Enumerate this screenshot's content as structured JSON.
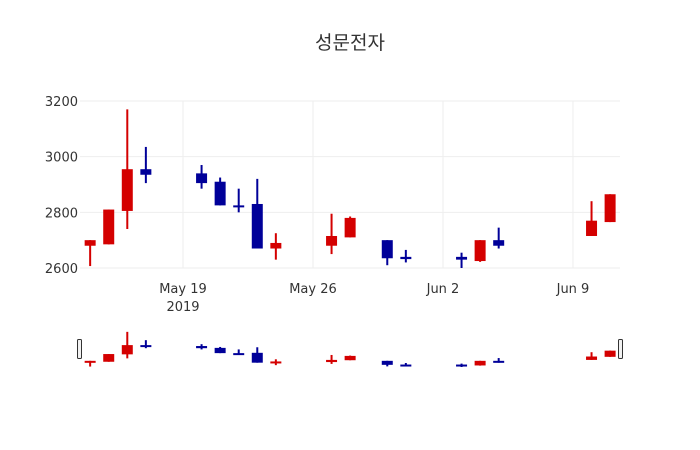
{
  "title": "성문전자",
  "colors": {
    "increasing": "#d40000",
    "decreasing": "#000099",
    "grid": "#eeeeee",
    "text": "#333333"
  },
  "chart_data": {
    "type": "candlestick",
    "title": "성문전자",
    "xlabel": "",
    "ylabel": "",
    "ylim": [
      2600,
      3200
    ],
    "yticks": [
      2600,
      2800,
      3000,
      3200
    ],
    "xticks": [
      {
        "date": "2019-05-19",
        "label": "May 19",
        "sublabel": "2019"
      },
      {
        "date": "2019-05-26",
        "label": "May 26",
        "sublabel": ""
      },
      {
        "date": "2019-06-02",
        "label": "Jun 2",
        "sublabel": ""
      },
      {
        "date": "2019-06-09",
        "label": "Jun 9",
        "sublabel": ""
      }
    ],
    "xrange": [
      "2019-05-13",
      "2019-06-11"
    ],
    "rangeslider": true,
    "grid": true,
    "candles": [
      {
        "date": "2019-05-14",
        "open": 2680,
        "high": 2700,
        "low": 2607,
        "close": 2700
      },
      {
        "date": "2019-05-15",
        "open": 2685,
        "high": 2810,
        "low": 2685,
        "close": 2810
      },
      {
        "date": "2019-05-16",
        "open": 2805,
        "high": 3170,
        "low": 2740,
        "close": 2955
      },
      {
        "date": "2019-05-17",
        "open": 2955,
        "high": 3035,
        "low": 2905,
        "close": 2935
      },
      {
        "date": "2019-05-20",
        "open": 2940,
        "high": 2970,
        "low": 2885,
        "close": 2905
      },
      {
        "date": "2019-05-21",
        "open": 2910,
        "high": 2925,
        "low": 2825,
        "close": 2825
      },
      {
        "date": "2019-05-22",
        "open": 2825,
        "high": 2885,
        "low": 2800,
        "close": 2820
      },
      {
        "date": "2019-05-23",
        "open": 2830,
        "high": 2920,
        "low": 2670,
        "close": 2670
      },
      {
        "date": "2019-05-24",
        "open": 2670,
        "high": 2725,
        "low": 2630,
        "close": 2690
      },
      {
        "date": "2019-05-27",
        "open": 2680,
        "high": 2795,
        "low": 2650,
        "close": 2715
      },
      {
        "date": "2019-05-28",
        "open": 2710,
        "high": 2785,
        "low": 2710,
        "close": 2780
      },
      {
        "date": "2019-05-30",
        "open": 2700,
        "high": 2700,
        "low": 2610,
        "close": 2635
      },
      {
        "date": "2019-05-31",
        "open": 2640,
        "high": 2665,
        "low": 2620,
        "close": 2632
      },
      {
        "date": "2019-06-03",
        "open": 2640,
        "high": 2655,
        "low": 2600,
        "close": 2630
      },
      {
        "date": "2019-06-04",
        "open": 2625,
        "high": 2700,
        "low": 2622,
        "close": 2700
      },
      {
        "date": "2019-06-05",
        "open": 2700,
        "high": 2745,
        "low": 2670,
        "close": 2680
      },
      {
        "date": "2019-06-10",
        "open": 2715,
        "high": 2840,
        "low": 2715,
        "close": 2770
      },
      {
        "date": "2019-06-11",
        "open": 2765,
        "high": 2865,
        "low": 2765,
        "close": 2865
      }
    ]
  }
}
